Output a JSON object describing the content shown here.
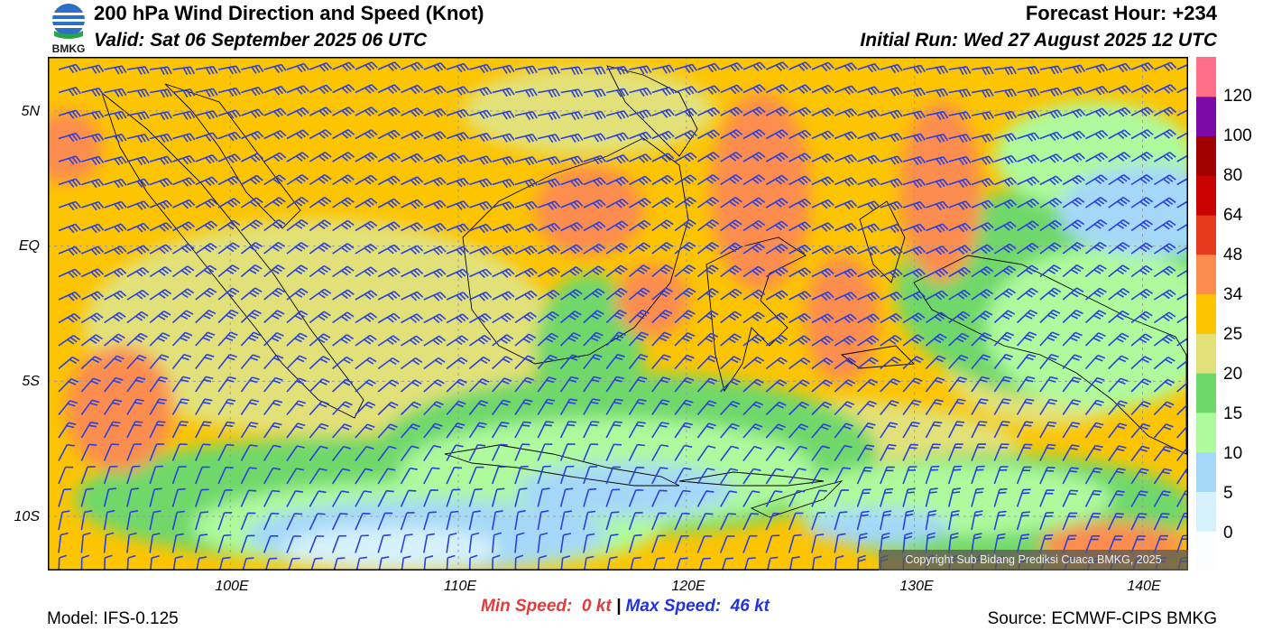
{
  "header": {
    "logo_text": "BMKG",
    "title": "200 hPa Wind Direction and Speed (Knot)",
    "valid": "Valid: Sat 06 September 2025 06 UTC",
    "forecast_hour": "Forecast Hour: +234",
    "initial_run": "Initial Run: Wed 27 August 2025 12 UTC"
  },
  "map": {
    "lat_labels": [
      "5N",
      "EQ",
      "5S",
      "10S"
    ],
    "lon_labels": [
      "100E",
      "110E",
      "120E",
      "130E",
      "140E"
    ],
    "lat_range": [
      -12,
      7
    ],
    "lon_range": [
      92,
      142
    ],
    "copyright": "Copyright Sub Bidang Prediksi Cuaca BMKG, 2025",
    "coastline_color": "#000000",
    "barb_color": "#2a3fe0"
  },
  "colorbar": {
    "labels": [
      "120",
      "100",
      "80",
      "64",
      "48",
      "34",
      "25",
      "20",
      "15",
      "10",
      "5",
      "0"
    ],
    "colors": [
      "#fbfdff",
      "#d6f1fb",
      "#a5d8f8",
      "#aefa9d",
      "#6fd86b",
      "#e2e179",
      "#fdc400",
      "#fc8d4f",
      "#e73a1c",
      "#cb0300",
      "#a00000",
      "#7b0aa6",
      "#ff6f88"
    ]
  },
  "footer": {
    "min_label": "Min Speed:",
    "min_value": "0 kt",
    "separator": "|",
    "max_label": "Max Speed:",
    "max_value": "46 kt",
    "model": "Model: IFS-0.125",
    "source": "Source: ECMWF-CIPS BMKG"
  }
}
